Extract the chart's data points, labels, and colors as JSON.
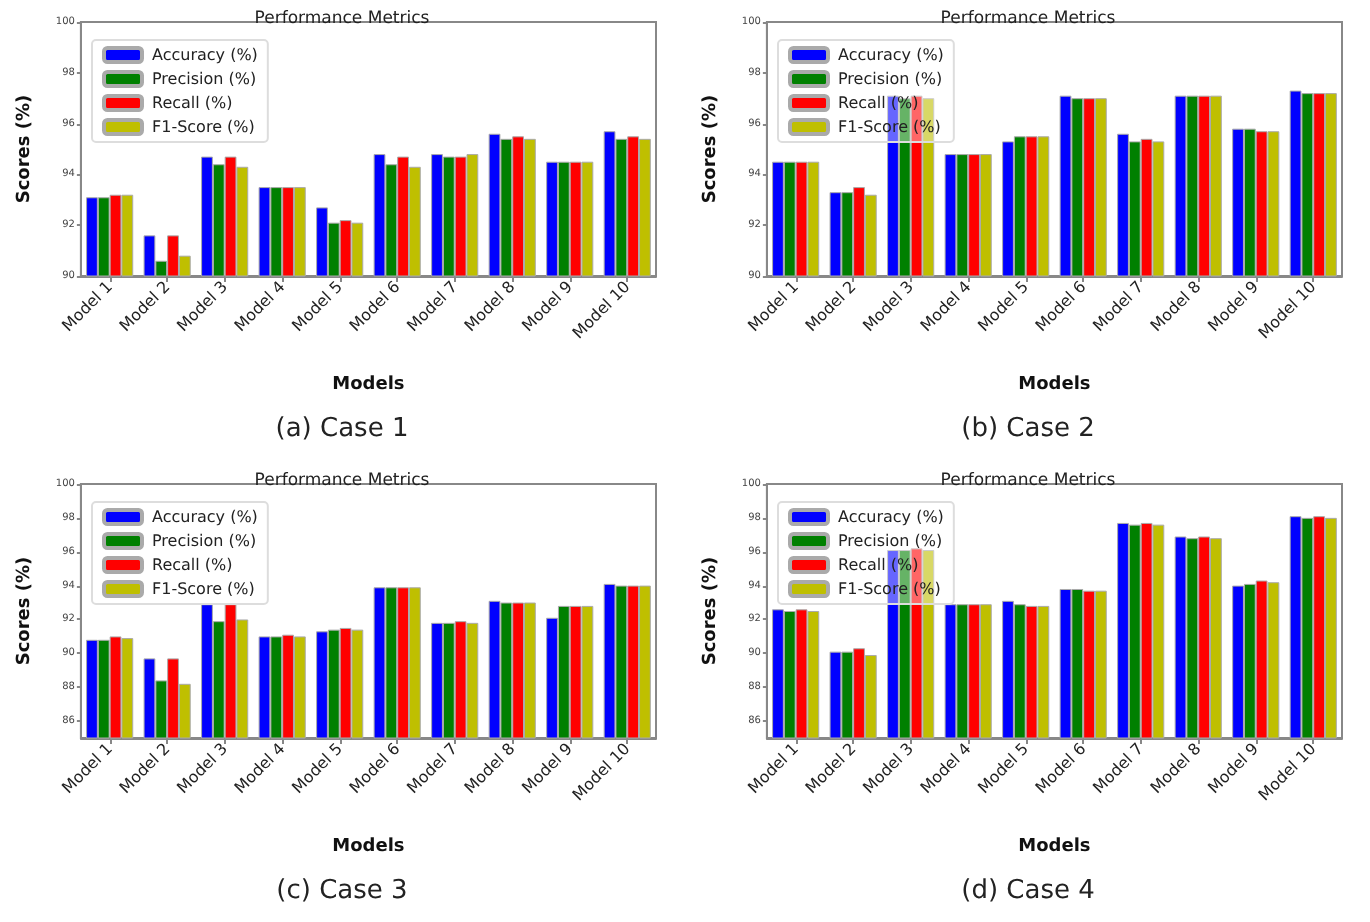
{
  "chart_data": [
    {
      "type": "bar",
      "title": "Performance Metrics",
      "xlabel": "Models",
      "ylabel": "Scores (%)",
      "annotations": [
        "(a) Case 1"
      ],
      "categories": [
        "Model 1",
        "Model 2",
        "Model 3",
        "Model 4",
        "Model 5",
        "Model 6",
        "Model 7",
        "Model 8",
        "Model 9",
        "Model 10"
      ],
      "series": [
        {
          "name": "Accuracy (%)",
          "color": "#0000ff",
          "values": [
            93.1,
            91.6,
            94.7,
            93.5,
            92.7,
            94.8,
            94.8,
            95.6,
            94.5,
            95.7
          ]
        },
        {
          "name": "Precision (%)",
          "color": "#008000",
          "values": [
            93.1,
            90.6,
            94.4,
            93.5,
            92.1,
            94.4,
            94.7,
            95.4,
            94.5,
            95.4
          ]
        },
        {
          "name": "Recall (%)",
          "color": "#ff0000",
          "values": [
            93.2,
            91.6,
            94.7,
            93.5,
            92.2,
            94.7,
            94.7,
            95.5,
            94.5,
            95.5
          ]
        },
        {
          "name": "F1-Score (%)",
          "color": "#bfbf00",
          "values": [
            93.2,
            90.8,
            94.3,
            93.5,
            92.1,
            94.3,
            94.8,
            95.4,
            94.5,
            95.4
          ]
        }
      ],
      "ylim": [
        90,
        100
      ],
      "yticks": [
        90,
        92,
        94,
        96,
        98,
        100
      ],
      "grid": false,
      "legend": "top left"
    },
    {
      "type": "bar",
      "title": "Performance Metrics",
      "xlabel": "Models",
      "ylabel": "Scores (%)",
      "annotations": [
        "(b) Case 2"
      ],
      "categories": [
        "Model 1",
        "Model 2",
        "Model 3",
        "Model 4",
        "Model 5",
        "Model 6",
        "Model 7",
        "Model 8",
        "Model 9",
        "Model 10"
      ],
      "series": [
        {
          "name": "Accuracy (%)",
          "color": "#0000ff",
          "values": [
            94.5,
            93.3,
            97.1,
            94.8,
            95.3,
            97.1,
            95.6,
            97.1,
            95.8,
            97.3
          ]
        },
        {
          "name": "Precision (%)",
          "color": "#008000",
          "values": [
            94.5,
            93.3,
            97.0,
            94.8,
            95.5,
            97.0,
            95.3,
            97.1,
            95.8,
            97.2
          ]
        },
        {
          "name": "Recall (%)",
          "color": "#ff0000",
          "values": [
            94.5,
            93.5,
            97.1,
            94.8,
            95.5,
            97.0,
            95.4,
            97.1,
            95.7,
            97.2
          ]
        },
        {
          "name": "F1-Score (%)",
          "color": "#bfbf00",
          "values": [
            94.5,
            93.2,
            97.0,
            94.8,
            95.5,
            97.0,
            95.3,
            97.1,
            95.7,
            97.2
          ]
        }
      ],
      "ylim": [
        90,
        100
      ],
      "yticks": [
        90,
        92,
        94,
        96,
        98,
        100
      ],
      "grid": false,
      "legend": "top left"
    },
    {
      "type": "bar",
      "title": "Performance Metrics",
      "xlabel": "Models",
      "ylabel": "Scores (%)",
      "annotations": [
        "(c) Case 3"
      ],
      "categories": [
        "Model 1",
        "Model 2",
        "Model 3",
        "Model 4",
        "Model 5",
        "Model 6",
        "Model 7",
        "Model 8",
        "Model 9",
        "Model 10"
      ],
      "series": [
        {
          "name": "Accuracy (%)",
          "color": "#0000ff",
          "values": [
            90.8,
            89.7,
            92.9,
            91.0,
            91.3,
            93.9,
            91.8,
            93.1,
            92.1,
            94.1
          ]
        },
        {
          "name": "Precision (%)",
          "color": "#008000",
          "values": [
            90.8,
            88.4,
            91.9,
            91.0,
            91.4,
            93.9,
            91.8,
            93.0,
            92.8,
            94.0
          ]
        },
        {
          "name": "Recall (%)",
          "color": "#ff0000",
          "values": [
            91.0,
            89.7,
            92.9,
            91.1,
            91.5,
            93.9,
            91.9,
            93.0,
            92.8,
            94.0
          ]
        },
        {
          "name": "F1-Score (%)",
          "color": "#bfbf00",
          "values": [
            90.9,
            88.2,
            92.0,
            91.0,
            91.4,
            93.9,
            91.8,
            93.0,
            92.8,
            94.0
          ]
        }
      ],
      "ylim": [
        85,
        100
      ],
      "yticks": [
        86,
        88,
        90,
        92,
        94,
        96,
        98,
        100
      ],
      "grid": false,
      "legend": "top left"
    },
    {
      "type": "bar",
      "title": "Performance Metrics",
      "xlabel": "Models",
      "ylabel": "Scores (%)",
      "annotations": [
        "(d) Case 4"
      ],
      "categories": [
        "Model 1",
        "Model 2",
        "Model 3",
        "Model 4",
        "Model 5",
        "Model 6",
        "Model 7",
        "Model 8",
        "Model 9",
        "Model 10"
      ],
      "series": [
        {
          "name": "Accuracy (%)",
          "color": "#0000ff",
          "values": [
            92.6,
            90.1,
            96.1,
            92.9,
            93.1,
            93.8,
            97.7,
            96.9,
            94.0,
            98.1
          ]
        },
        {
          "name": "Precision (%)",
          "color": "#008000",
          "values": [
            92.5,
            90.1,
            96.1,
            92.9,
            92.9,
            93.8,
            97.6,
            96.8,
            94.1,
            98.0
          ]
        },
        {
          "name": "Recall (%)",
          "color": "#ff0000",
          "values": [
            92.6,
            90.3,
            96.2,
            92.9,
            92.8,
            93.7,
            97.7,
            96.9,
            94.3,
            98.1
          ]
        },
        {
          "name": "F1-Score (%)",
          "color": "#bfbf00",
          "values": [
            92.5,
            89.9,
            96.1,
            92.9,
            92.8,
            93.7,
            97.6,
            96.8,
            94.2,
            98.0
          ]
        }
      ],
      "ylim": [
        85,
        100
      ],
      "yticks": [
        86,
        88,
        90,
        92,
        94,
        96,
        98,
        100
      ],
      "grid": false,
      "legend": "top left"
    }
  ]
}
